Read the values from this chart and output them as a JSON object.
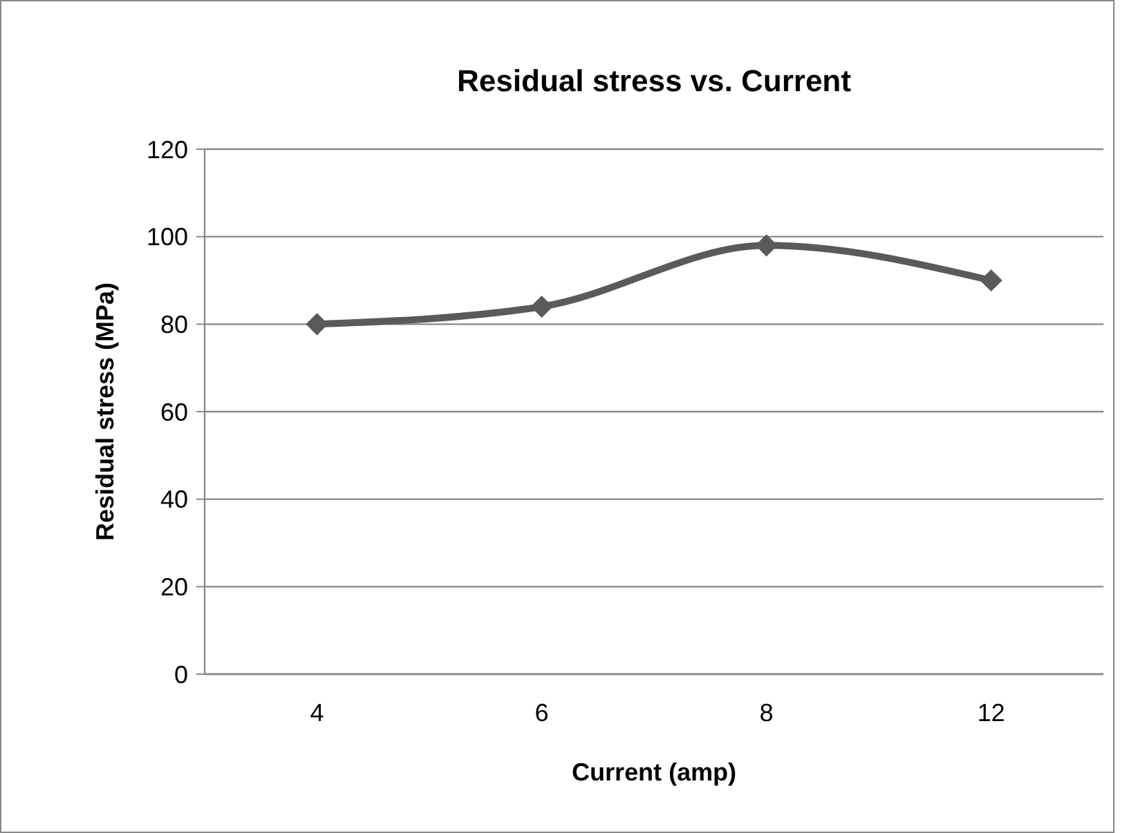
{
  "chart_data": {
    "type": "line",
    "title": "Residual stress vs. Current",
    "xlabel": "Current (amp)",
    "ylabel": "Residual stress (MPa)",
    "categories": [
      "4",
      "6",
      "8",
      "12"
    ],
    "series": [
      {
        "color": "#5a5a5a",
        "values": [
          80,
          84,
          98,
          90
        ]
      }
    ],
    "ylim": [
      0,
      120
    ],
    "yticks": [
      0,
      20,
      40,
      60,
      80,
      100,
      120
    ],
    "grid": "y",
    "marker": "diamond",
    "line_style": "solid"
  }
}
